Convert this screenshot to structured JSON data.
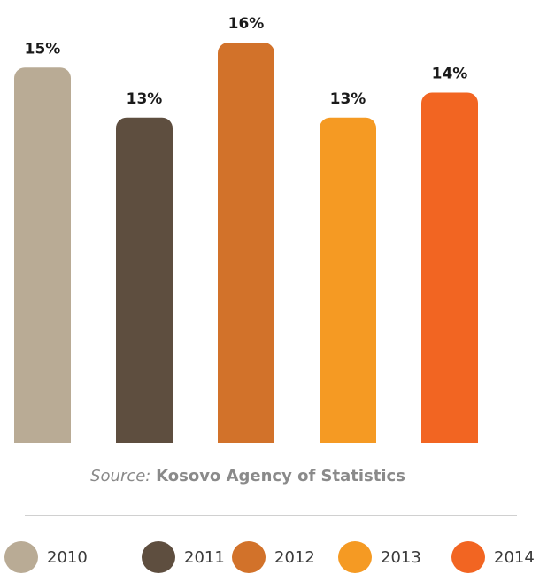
{
  "chart_data": {
    "type": "bar",
    "categories": [
      "2010",
      "2011",
      "2012",
      "2013",
      "2014"
    ],
    "values": [
      15,
      13,
      16,
      13,
      14
    ],
    "data_labels": [
      "15%",
      "13%",
      "16%",
      "13%",
      "14%"
    ],
    "colors": [
      "#b9ab95",
      "#5e4e3f",
      "#d2722a",
      "#f59a23",
      "#f26522"
    ],
    "title": "",
    "xlabel": "",
    "ylabel": "",
    "ylim": [
      0,
      16
    ],
    "grid": false,
    "legend_position": "bottom"
  },
  "source": {
    "prefix": "Source:",
    "name": "Kosovo Agency of Statistics"
  },
  "legend": {
    "items": [
      {
        "label": "2010",
        "color": "#b9ab95"
      },
      {
        "label": "2011",
        "color": "#5e4e3f"
      },
      {
        "label": "2012",
        "color": "#d2722a"
      },
      {
        "label": "2013",
        "color": "#f59a23"
      },
      {
        "label": "2014",
        "color": "#f26522"
      }
    ]
  }
}
